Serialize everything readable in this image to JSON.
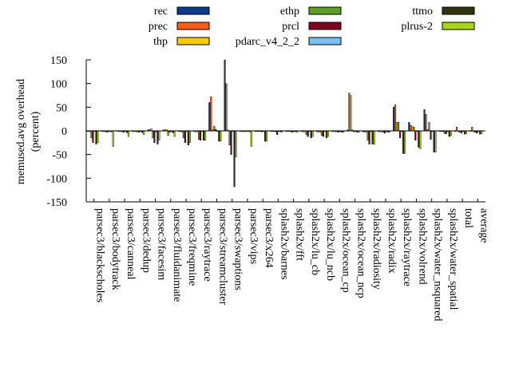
{
  "chart_data": {
    "type": "bar",
    "title": "",
    "xlabel": "",
    "ylabel": "memused.avg overhead",
    "ylabel_unit": "(percent)",
    "ylim": [
      -150,
      150
    ],
    "yticks": [
      -150,
      -100,
      -50,
      0,
      50,
      100,
      150
    ],
    "grid": false,
    "legend_position": "top",
    "categories": [
      "parsec3/blackscholes",
      "parsec3/bodytrack",
      "parsec3/canneal",
      "parsec3/dedup",
      "parsec3/facesim",
      "parsec3/fluidanimate",
      "parsec3/freqmine",
      "parsec3/raytrace",
      "parsec3/streamcluster",
      "parsec3/swaptions",
      "parsec3/vips",
      "parsec3/x264",
      "splash2x/barnes",
      "splash2x/fft",
      "splash2x/lu_cb",
      "splash2x/lu_ncb",
      "splash2x/ocean_cp",
      "splash2x/ocean_ncp",
      "splash2x/radiosity",
      "splash2x/radix",
      "splash2x/raytrace",
      "splash2x/volrend",
      "splash2x/water_nsquared",
      "splash2x/water_spatial",
      "total",
      "average"
    ],
    "series": [
      {
        "name": "rec",
        "color": "#0b3c85",
        "values": [
          -1,
          -1,
          -1,
          -1,
          2,
          2,
          -1,
          -1,
          60,
          150,
          -1,
          -1,
          -1,
          -1,
          -1,
          -2,
          -1,
          2,
          -2,
          -1,
          50,
          18,
          45,
          -1,
          -1,
          -1
        ]
      },
      {
        "name": "prec",
        "color": "#ff5a1f",
        "values": [
          -1,
          -1,
          -1,
          -1,
          3,
          2,
          -1,
          -2,
          72,
          100,
          -1,
          -1,
          -1,
          -1,
          -2,
          -2,
          -1,
          80,
          -2,
          -2,
          55,
          12,
          35,
          -1,
          8,
          8
        ]
      },
      {
        "name": "thp",
        "color": "#ffcc00",
        "values": [
          -2,
          -2,
          -1,
          -2,
          5,
          3,
          -3,
          -2,
          2,
          2,
          -2,
          -1,
          -1,
          -1,
          -2,
          -3,
          -2,
          75,
          -3,
          -2,
          18,
          10,
          3,
          -1,
          -2,
          -2
        ]
      },
      {
        "name": "ethp",
        "color": "#5d9e2a",
        "values": [
          -15,
          -3,
          -2,
          -2,
          -15,
          -10,
          -15,
          -18,
          10,
          -30,
          -1,
          -1,
          -2,
          -2,
          -8,
          -10,
          -2,
          2,
          -20,
          -3,
          18,
          8,
          18,
          -6,
          -3,
          -3
        ]
      },
      {
        "name": "prcl",
        "color": "#800020",
        "values": [
          -25,
          -2,
          -3,
          -3,
          -25,
          -3,
          -25,
          -20,
          3,
          -50,
          -1,
          -2,
          -8,
          -3,
          -12,
          -12,
          -3,
          -2,
          -28,
          -5,
          -15,
          -20,
          -18,
          -6,
          -5,
          -5
        ]
      },
      {
        "name": "pdarc_v4_2_2",
        "color": "#7cbff5",
        "values": [
          -1,
          -1,
          -1,
          -1,
          -2,
          -1,
          -1,
          -1,
          -1,
          -1,
          -1,
          -1,
          -1,
          -1,
          -1,
          -1,
          -1,
          -1,
          -1,
          -1,
          -1,
          -1,
          -1,
          -1,
          -1,
          -1
        ]
      },
      {
        "name": "ttmo",
        "color": "#2e3508",
        "values": [
          -28,
          -2,
          -4,
          -4,
          -28,
          -4,
          -30,
          -20,
          -22,
          -118,
          -2,
          -22,
          -2,
          -2,
          -15,
          -15,
          -3,
          -3,
          -28,
          -3,
          -48,
          -35,
          -45,
          -12,
          -7,
          -7
        ]
      },
      {
        "name": "plrus-2",
        "color": "#a8d51a",
        "values": [
          -25,
          -33,
          -12,
          -8,
          -20,
          -12,
          -25,
          -20,
          -22,
          -55,
          -33,
          -22,
          -3,
          -3,
          -12,
          -12,
          -3,
          -3,
          -28,
          -3,
          -48,
          -38,
          -45,
          -10,
          -6,
          -6
        ]
      }
    ]
  }
}
